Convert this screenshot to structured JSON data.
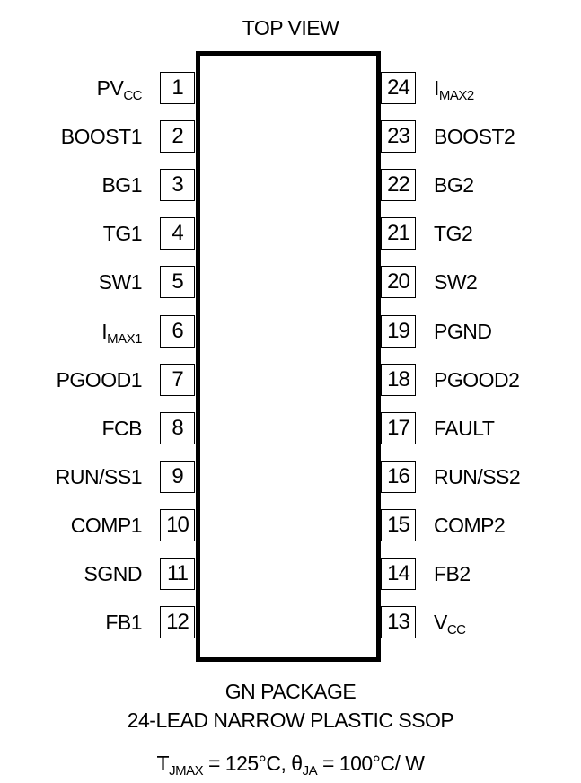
{
  "title": "TOP VIEW",
  "left_pins": [
    {
      "num": "1",
      "name": "PV",
      "sub": "CC"
    },
    {
      "num": "2",
      "name": "BOOST1",
      "sub": ""
    },
    {
      "num": "3",
      "name": "BG1",
      "sub": ""
    },
    {
      "num": "4",
      "name": "TG1",
      "sub": ""
    },
    {
      "num": "5",
      "name": "SW1",
      "sub": ""
    },
    {
      "num": "6",
      "name": "I",
      "sub": "MAX1"
    },
    {
      "num": "7",
      "name": "PGOOD1",
      "sub": ""
    },
    {
      "num": "8",
      "name": "FCB",
      "sub": ""
    },
    {
      "num": "9",
      "name": "RUN/SS1",
      "sub": ""
    },
    {
      "num": "10",
      "name": "COMP1",
      "sub": ""
    },
    {
      "num": "11",
      "name": "SGND",
      "sub": ""
    },
    {
      "num": "12",
      "name": "FB1",
      "sub": ""
    }
  ],
  "right_pins": [
    {
      "num": "24",
      "name": "I",
      "sub": "MAX2"
    },
    {
      "num": "23",
      "name": "BOOST2",
      "sub": ""
    },
    {
      "num": "22",
      "name": "BG2",
      "sub": ""
    },
    {
      "num": "21",
      "name": "TG2",
      "sub": ""
    },
    {
      "num": "20",
      "name": "SW2",
      "sub": ""
    },
    {
      "num": "19",
      "name": "PGND",
      "sub": ""
    },
    {
      "num": "18",
      "name": "PGOOD2",
      "sub": ""
    },
    {
      "num": "17",
      "name": "FAULT",
      "sub": ""
    },
    {
      "num": "16",
      "name": "RUN/SS2",
      "sub": ""
    },
    {
      "num": "15",
      "name": "COMP2",
      "sub": ""
    },
    {
      "num": "14",
      "name": "FB2",
      "sub": ""
    },
    {
      "num": "13",
      "name": "V",
      "sub": "CC"
    }
  ],
  "package_line1": "GN PACKAGE",
  "package_line2": "24-LEAD NARROW PLASTIC SSOP",
  "thermal": {
    "t": "T",
    "t_sub": "JMAX",
    "t_val": " = 125°C, ",
    "theta": "θ",
    "theta_sub": "JA",
    "theta_val": " = 100°C/ W"
  }
}
